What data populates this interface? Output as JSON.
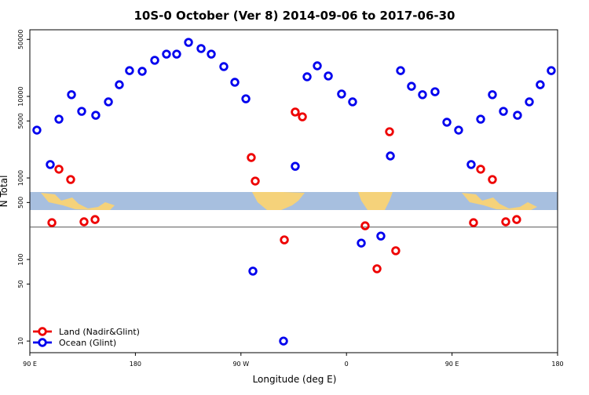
{
  "chart_data": {
    "type": "scatter",
    "title": "10S-0 October (Ver 8)   2014-09-06 to 2017-06-30",
    "x_label": "Longitude (deg E)",
    "y_label": "N Total",
    "xlim": [
      90,
      540
    ],
    "xticks": [
      {
        "value": 90,
        "label": "90 E"
      },
      {
        "value": 180,
        "label": "180"
      },
      {
        "value": 270,
        "label": "90 W"
      },
      {
        "value": 360,
        "label": "0"
      },
      {
        "value": 450,
        "label": "90 E"
      },
      {
        "value": 540,
        "label": "180"
      }
    ],
    "ylim": [
      7.2,
      65600
    ],
    "y_log": true,
    "yticks": [
      10,
      50,
      100,
      500,
      1000,
      5000,
      10000,
      50000
    ],
    "reference_line": 250,
    "legend": "bottom-left",
    "series": [
      {
        "name": "Land (Nadir&Glint)",
        "color": "#ee0000",
        "x": [
          108.8,
          114.8,
          124.8,
          136.2,
          145.6,
          278.8,
          282.2,
          307.0,
          316.3,
          322.4,
          375.9,
          386.0,
          396.7,
          402.0,
          468.3,
          474.4,
          484.4,
          495.8,
          505.1
        ],
        "values": [
          283,
          1280,
          957,
          290,
          309,
          1780,
          916,
          174,
          6430,
          5620,
          259,
          77,
          3690,
          128,
          283,
          1280,
          957,
          290,
          309
        ]
      },
      {
        "name": "Ocean (Glint)",
        "color": "#0000ee",
        "x": [
          96.0,
          107.4,
          114.8,
          125.5,
          134.2,
          146.2,
          157.0,
          166.3,
          175.0,
          185.8,
          196.5,
          206.5,
          215.2,
          225.3,
          236.0,
          244.7,
          255.4,
          264.8,
          274.2,
          280.2,
          306.3,
          316.3,
          326.4,
          335.1,
          344.5,
          355.8,
          365.2,
          372.6,
          389.3,
          397.4,
          406.1,
          415.4,
          424.8,
          435.5,
          445.6,
          455.6,
          466.3,
          474.4,
          484.4,
          493.8,
          505.8,
          515.9,
          525.2,
          534.6
        ],
        "values": [
          3860,
          1460,
          5260,
          10500,
          6560,
          5870,
          8570,
          13900,
          20700,
          20300,
          27700,
          33000,
          33000,
          46000,
          38600,
          33000,
          23200,
          14900,
          9350,
          72,
          10,
          1390,
          17400,
          23700,
          17800,
          10700,
          8570,
          159,
          194,
          1860,
          20700,
          13300,
          10500,
          11400,
          4820,
          3860,
          1460,
          5260,
          10500,
          6560,
          5870,
          8570,
          13900,
          20700
        ]
      }
    ]
  }
}
